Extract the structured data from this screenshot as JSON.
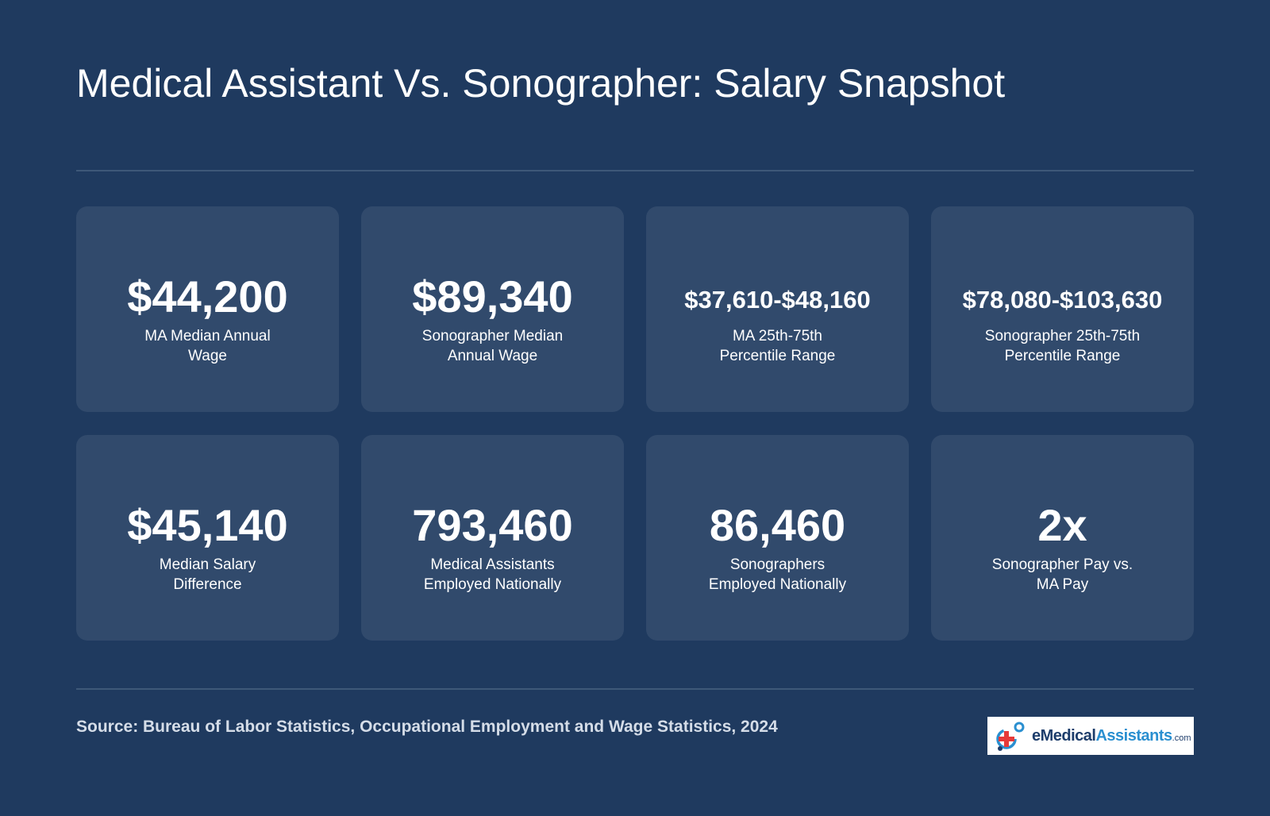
{
  "title": "Medical Assistant Vs. Sonographer: Salary Snapshot",
  "stats": [
    {
      "value": "$44,200",
      "label": "MA Median Annual Wage"
    },
    {
      "value": "$89,340",
      "label": "Sonographer Median Annual Wage"
    },
    {
      "value": "$37,610-$48,160",
      "label": "MA 25th-75th Percentile Range"
    },
    {
      "value": "$78,080-$103,630",
      "label": "Sonographer 25th-75th Percentile Range"
    },
    {
      "value": "$45,140",
      "label": "Median Salary Difference"
    },
    {
      "value": "793,460",
      "label": "Medical Assistants Employed Nationally"
    },
    {
      "value": "86,460",
      "label": "Sonographers Employed Nationally"
    },
    {
      "value": "2x",
      "label": "Sonographer Pay vs. MA Pay"
    }
  ],
  "source": "Source: Bureau of Labor Statistics, Occupational Employment and Wage Statistics, 2024",
  "logo": {
    "prefix": "e",
    "part1": "Medical",
    "part2": "Assistants",
    "suffix": ".com",
    "icon": "medical-cross-logo-icon"
  },
  "colors": {
    "background": "#1f3a5f",
    "card": "#314a6c",
    "divider": "#3e5878",
    "logo_dark": "#1d3d6b",
    "logo_blue": "#2a8fd0",
    "logo_red": "#e63a3a"
  }
}
